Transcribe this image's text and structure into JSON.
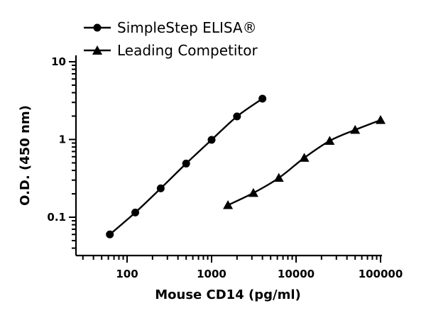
{
  "chart_data": {
    "type": "scatter",
    "title": "",
    "xlabel": "Mouse CD14 (pg/ml)",
    "ylabel": "O.D. (450 nm)",
    "x_scale": "log",
    "y_scale": "log",
    "xlim": [
      30,
      100000
    ],
    "ylim": [
      0.04,
      10
    ],
    "x_ticks": [
      {
        "value": 100,
        "label": "100"
      },
      {
        "value": 1000,
        "label": "1000"
      },
      {
        "value": 10000,
        "label": "10000"
      },
      {
        "value": 100000,
        "label": "100000"
      }
    ],
    "y_ticks": [
      {
        "value": 0.1,
        "label": "0.1"
      },
      {
        "value": 1,
        "label": "1"
      },
      {
        "value": 10,
        "label": "10"
      }
    ],
    "grid": false,
    "legend_position": "top-left",
    "series": [
      {
        "name": "SimpleStep ELISA®",
        "marker": "circle",
        "color": "#000000",
        "x": [
          62.5,
          125,
          250,
          500,
          1000,
          2000,
          4000
        ],
        "y": [
          0.06,
          0.115,
          0.235,
          0.49,
          0.99,
          1.98,
          3.35
        ]
      },
      {
        "name": "Leading Competitor",
        "marker": "triangle",
        "color": "#000000",
        "x": [
          1563,
          3125,
          6250,
          12500,
          25000,
          50000,
          100000
        ],
        "y": [
          0.143,
          0.205,
          0.32,
          0.58,
          0.96,
          1.33,
          1.78
        ]
      }
    ]
  }
}
